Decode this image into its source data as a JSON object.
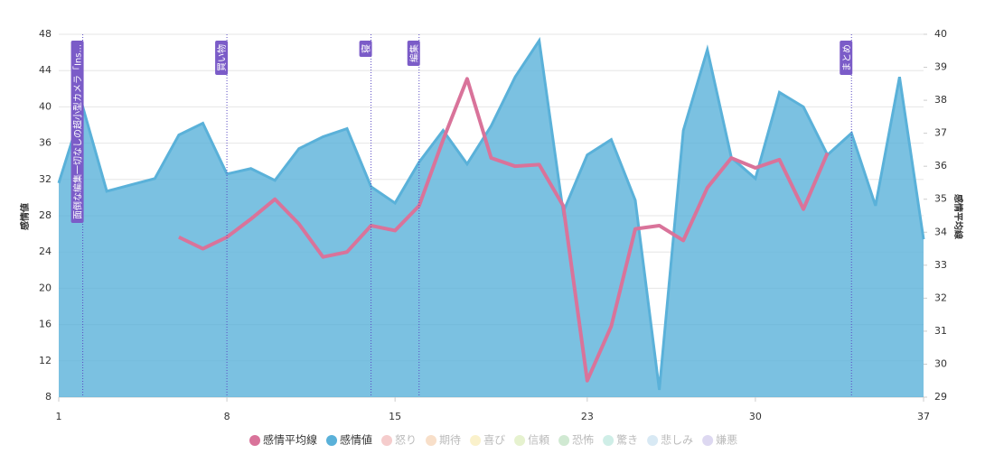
{
  "chart_data": {
    "type": "area-line",
    "xlim": [
      1,
      37
    ],
    "xticks": [
      1,
      8,
      15,
      23,
      30,
      37
    ],
    "x": [
      1,
      2,
      3,
      4,
      5,
      6,
      7,
      8,
      9,
      10,
      11,
      12,
      13,
      14,
      15,
      16,
      17,
      18,
      19,
      20,
      21,
      22,
      23,
      24,
      25,
      26,
      27,
      28,
      29,
      30,
      31,
      32,
      33,
      34,
      35,
      36,
      37
    ],
    "ylim": [
      8,
      48
    ],
    "yticks": [
      8,
      12,
      16,
      20,
      24,
      28,
      32,
      36,
      40,
      44,
      48
    ],
    "y2lim": [
      29,
      40
    ],
    "y2ticks": [
      29,
      30,
      31,
      32,
      33,
      34,
      35,
      36,
      37,
      38,
      39,
      40
    ],
    "y_label": "感情値",
    "y2_label": "感情平均線",
    "grid": true,
    "series": [
      {
        "name": "感情平均線",
        "color": "#d9739a",
        "axis": "y2",
        "kind": "line",
        "values": [
          null,
          null,
          null,
          null,
          null,
          33.85,
          33.5,
          33.85,
          34.4,
          35.0,
          34.25,
          33.25,
          33.4,
          34.2,
          34.05,
          34.8,
          36.8,
          38.65,
          36.25,
          36.0,
          36.05,
          34.8,
          29.5,
          31.15,
          34.1,
          34.2,
          33.75,
          35.35,
          36.25,
          35.95,
          36.2,
          34.7,
          36.4,
          null,
          null,
          null,
          null
        ]
      },
      {
        "name": "感情値",
        "color": "#5ab1d9",
        "kind": "area",
        "values": [
          31.6,
          40.0,
          30.7,
          31.4,
          32.1,
          36.9,
          38.2,
          32.6,
          33.2,
          31.9,
          35.4,
          36.7,
          37.6,
          31.2,
          29.4,
          33.9,
          37.4,
          33.7,
          37.9,
          43.3,
          47.3,
          28.4,
          34.7,
          36.4,
          29.7,
          8.8,
          37.4,
          46.3,
          34.4,
          32.1,
          41.6,
          40.0,
          34.7,
          37.1,
          29.1,
          43.3,
          25.4
        ]
      }
    ],
    "hidden_series": [
      {
        "name": "怒り",
        "color": "#f5cccc"
      },
      {
        "name": "期待",
        "color": "#f8dfc9"
      },
      {
        "name": "喜び",
        "color": "#faf1cb"
      },
      {
        "name": "信頼",
        "color": "#e6f2cf"
      },
      {
        "name": "恐怖",
        "color": "#d0e9d2"
      },
      {
        "name": "驚き",
        "color": "#cfeee7"
      },
      {
        "name": "悲しみ",
        "color": "#d8e9f4"
      },
      {
        "name": "嫌悪",
        "color": "#ddd8f1"
      }
    ],
    "annotations": [
      {
        "x": 2,
        "label": "面倒な編集一切なしの超小型カメラ「Ins..."
      },
      {
        "x": 8,
        "label": "買い物"
      },
      {
        "x": 14,
        "label": "寝"
      },
      {
        "x": 16,
        "label": "編集"
      },
      {
        "x": 34,
        "label": "まとめ"
      }
    ]
  }
}
